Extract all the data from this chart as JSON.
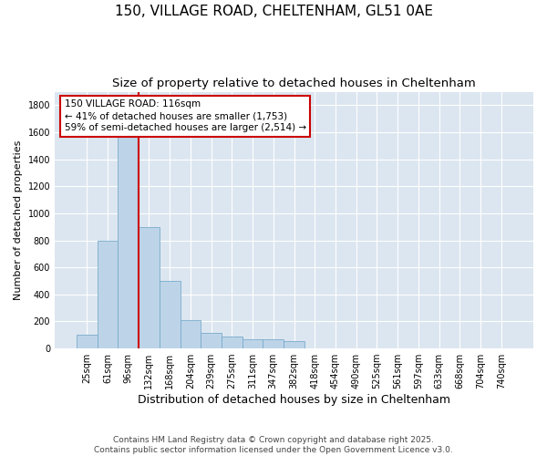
{
  "title_line1": "150, VILLAGE ROAD, CHELTENHAM, GL51 0AE",
  "title_line2": "Size of property relative to detached houses in Cheltenham",
  "xlabel": "Distribution of detached houses by size in Cheltenham",
  "ylabel": "Number of detached properties",
  "categories": [
    "25sqm",
    "61sqm",
    "96sqm",
    "132sqm",
    "168sqm",
    "204sqm",
    "239sqm",
    "275sqm",
    "311sqm",
    "347sqm",
    "382sqm",
    "418sqm",
    "454sqm",
    "490sqm",
    "525sqm",
    "561sqm",
    "597sqm",
    "633sqm",
    "668sqm",
    "704sqm",
    "740sqm"
  ],
  "values": [
    100,
    800,
    1650,
    900,
    500,
    210,
    115,
    85,
    70,
    70,
    55,
    0,
    0,
    0,
    0,
    0,
    0,
    0,
    0,
    0,
    0
  ],
  "bar_color": "#bdd4e8",
  "bar_edge_color": "#7aaccc",
  "vline_color": "#cc0000",
  "annotation_text": "150 VILLAGE ROAD: 116sqm\n← 41% of detached houses are smaller (1,753)\n59% of semi-detached houses are larger (2,514) →",
  "annotation_box_color": "#ffffff",
  "annotation_box_edge": "#cc0000",
  "ylim": [
    0,
    1900
  ],
  "yticks": [
    0,
    200,
    400,
    600,
    800,
    1000,
    1200,
    1400,
    1600,
    1800
  ],
  "background_color": "#dce6f0",
  "grid_color": "#c5d3e0",
  "footer_text": "Contains HM Land Registry data © Crown copyright and database right 2025.\nContains public sector information licensed under the Open Government Licence v3.0.",
  "title_fontsize": 11,
  "subtitle_fontsize": 9.5
}
